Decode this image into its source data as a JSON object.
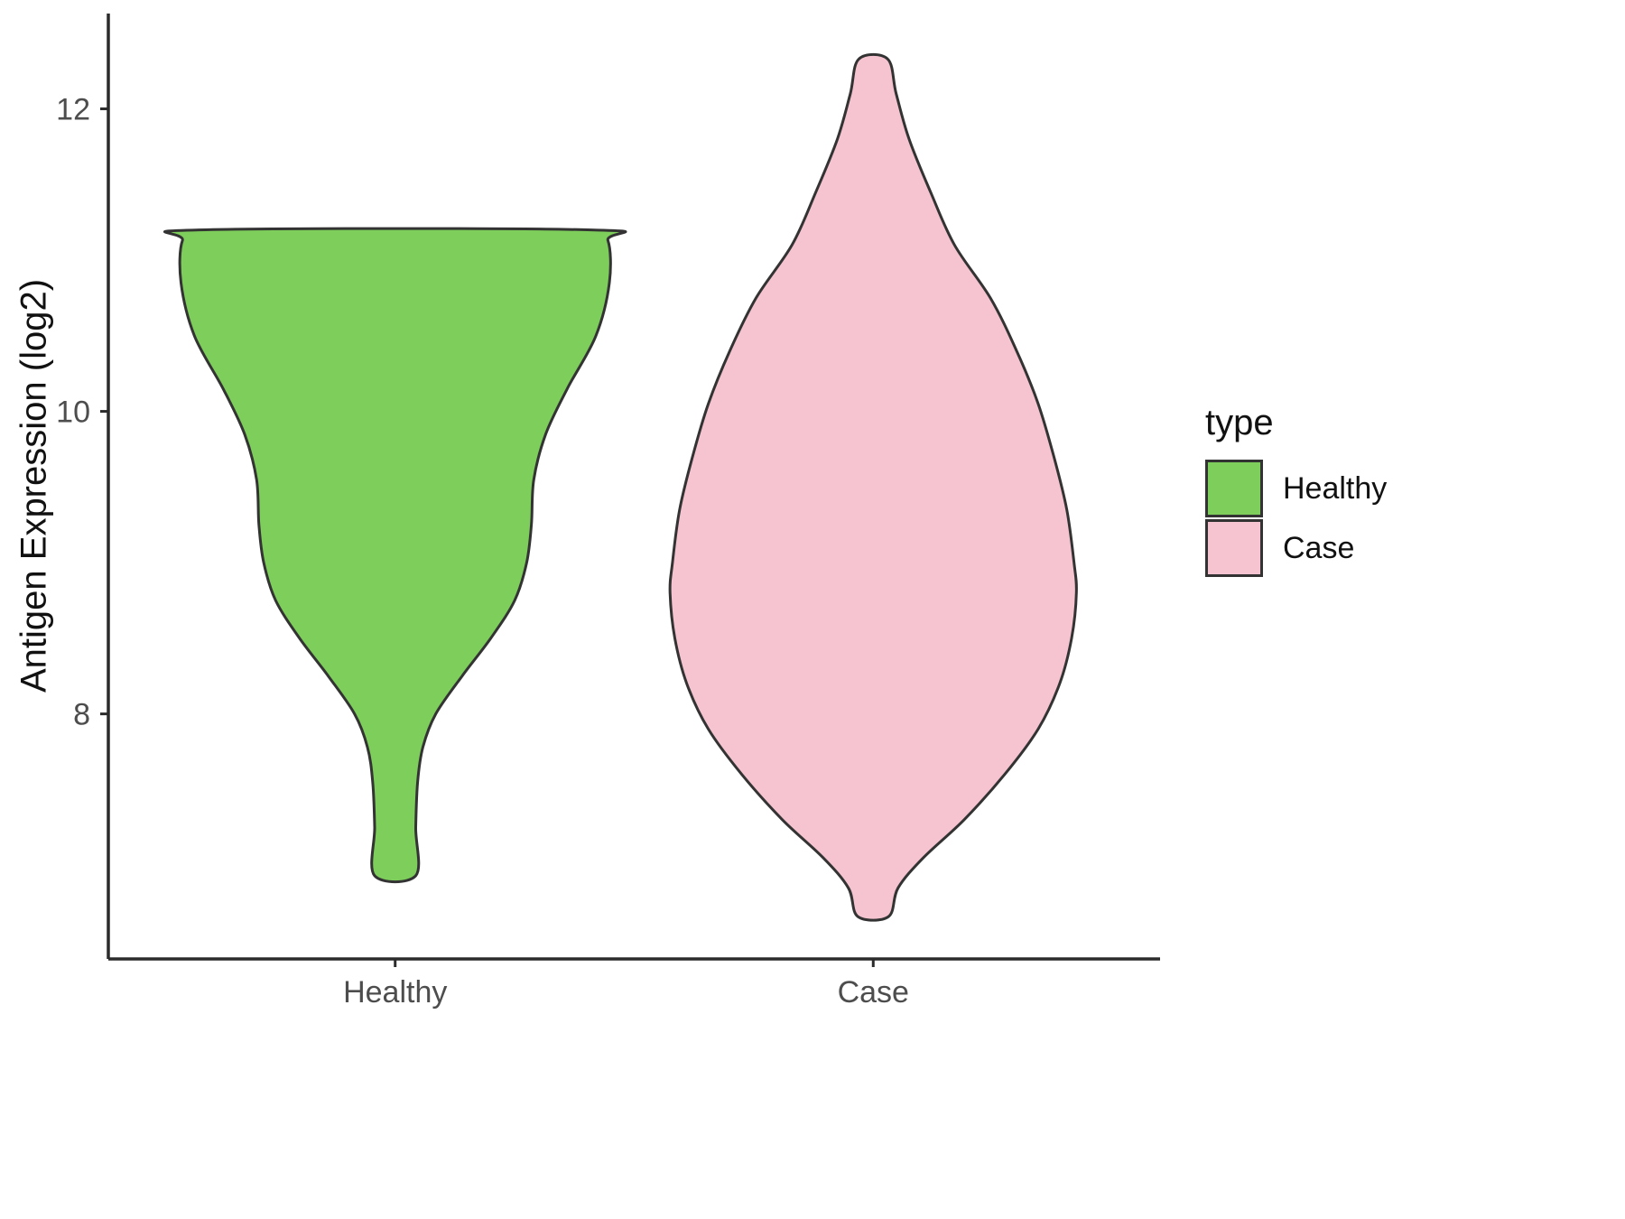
{
  "chart_data": {
    "type": "violin",
    "title": "",
    "xlabel": "",
    "ylabel": "Antigen Expression (log2)",
    "categories": [
      "Healthy",
      "Case"
    ],
    "yticks": [
      8,
      10,
      12
    ],
    "ylim": [
      6.38,
      12.63
    ],
    "xlim": [
      0.4,
      2.6
    ],
    "grid": "off",
    "axis_color": "#2b2b2b",
    "tick_color": "#4d4d4d",
    "outline": "#333333",
    "legend": {
      "title": "type",
      "position": "right"
    },
    "series": [
      {
        "name": "Healthy",
        "fill": "#7dce5a",
        "center": 1,
        "value_range": [
          6.93,
          11.2
        ],
        "profile": [
          [
            11.2,
            0.41
          ],
          [
            11.13,
            0.445
          ],
          [
            10.85,
            0.448
          ],
          [
            10.5,
            0.42
          ],
          [
            10.15,
            0.36
          ],
          [
            9.85,
            0.315
          ],
          [
            9.55,
            0.29
          ],
          [
            9.25,
            0.285
          ],
          [
            9.0,
            0.275
          ],
          [
            8.75,
            0.25
          ],
          [
            8.5,
            0.2
          ],
          [
            8.25,
            0.14
          ],
          [
            8.0,
            0.085
          ],
          [
            7.78,
            0.058
          ],
          [
            7.55,
            0.047
          ],
          [
            7.25,
            0.043
          ],
          [
            6.93,
            0.043
          ]
        ]
      },
      {
        "name": "Case",
        "fill": "#f5c4d0",
        "center": 2,
        "value_range": [
          6.66,
          12.33
        ],
        "profile": [
          [
            12.33,
            0.03
          ],
          [
            12.1,
            0.048
          ],
          [
            11.8,
            0.075
          ],
          [
            11.45,
            0.12
          ],
          [
            11.1,
            0.17
          ],
          [
            10.75,
            0.245
          ],
          [
            10.4,
            0.3
          ],
          [
            10.05,
            0.345
          ],
          [
            9.7,
            0.378
          ],
          [
            9.35,
            0.405
          ],
          [
            9.0,
            0.42
          ],
          [
            8.8,
            0.425
          ],
          [
            8.5,
            0.415
          ],
          [
            8.2,
            0.39
          ],
          [
            7.9,
            0.345
          ],
          [
            7.6,
            0.275
          ],
          [
            7.3,
            0.19
          ],
          [
            7.05,
            0.105
          ],
          [
            6.85,
            0.052
          ],
          [
            6.66,
            0.032
          ]
        ]
      }
    ]
  }
}
